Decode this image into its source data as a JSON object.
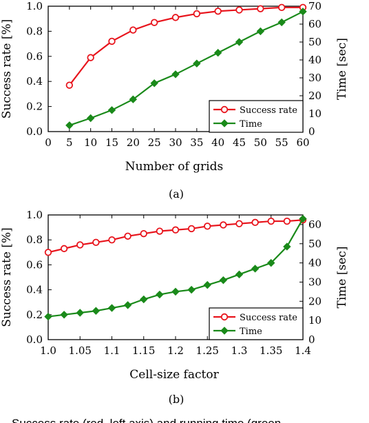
{
  "colors": {
    "success": "#e8141c",
    "time": "#1a8a1a",
    "axis": "#000000"
  },
  "figure_caption": "Success rate (red, left axis) and running time (green",
  "chart_data": [
    {
      "type": "line",
      "panel_label": "(a)",
      "xlabel": "Number of grids",
      "ylabel_left": "Success rate [%]",
      "ylabel_right": "Time [sec]",
      "xlim": [
        0,
        60
      ],
      "xticks": [
        0,
        5,
        10,
        15,
        20,
        25,
        30,
        35,
        40,
        45,
        50,
        55,
        60
      ],
      "xtick_labels": [
        "0",
        "5",
        "10",
        "15",
        "20",
        "25",
        "30",
        "35",
        "40",
        "45",
        "50",
        "55",
        "60"
      ],
      "ylim_left": [
        0,
        1.0
      ],
      "yticks_left": [
        0,
        0.2,
        0.4,
        0.6,
        0.8,
        1.0
      ],
      "ytick_labels_left": [
        "0.0",
        "0.2",
        "0.4",
        "0.6",
        "0.8",
        "1.0"
      ],
      "ylim_right": [
        0,
        70
      ],
      "yticks_right": [
        0,
        10,
        20,
        30,
        40,
        50,
        60,
        70
      ],
      "ytick_labels_right": [
        "0",
        "10",
        "20",
        "30",
        "40",
        "50",
        "60",
        "70"
      ],
      "x": [
        5,
        10,
        15,
        20,
        25,
        30,
        35,
        40,
        45,
        50,
        55,
        60
      ],
      "series": [
        {
          "name": "Success rate",
          "axis": "left",
          "marker": "circle",
          "values": [
            0.37,
            0.59,
            0.72,
            0.81,
            0.87,
            0.91,
            0.94,
            0.96,
            0.97,
            0.98,
            0.99,
            0.99
          ]
        },
        {
          "name": "Time",
          "axis": "right",
          "marker": "diamond",
          "values": [
            3.5,
            7.5,
            12,
            18,
            27,
            32,
            38,
            44,
            50,
            56,
            61,
            67
          ]
        }
      ],
      "legend_position": "bottom-right",
      "grid": false
    },
    {
      "type": "line",
      "panel_label": "(b)",
      "xlabel": "Cell-size factor",
      "ylabel_left": "Success rate [%]",
      "ylabel_right": "Time [sec]",
      "xlim": [
        1.0,
        1.4
      ],
      "xticks": [
        1.0,
        1.05,
        1.1,
        1.15,
        1.2,
        1.25,
        1.3,
        1.35,
        1.4
      ],
      "xtick_labels": [
        "1.0",
        "1.05",
        "1.1",
        "1.15",
        "1.2",
        "1.25",
        "1.3",
        "1.35",
        "1.4"
      ],
      "ylim_left": [
        0,
        1.0
      ],
      "yticks_left": [
        0,
        0.2,
        0.4,
        0.6,
        0.8,
        1.0
      ],
      "ytick_labels_left": [
        "0.0",
        "0.2",
        "0.4",
        "0.6",
        "0.8",
        "1.0"
      ],
      "ylim_right": [
        0,
        65
      ],
      "yticks_right": [
        0,
        10,
        20,
        30,
        40,
        50,
        60
      ],
      "ytick_labels_right": [
        "0",
        "10",
        "20",
        "30",
        "40",
        "50",
        "60"
      ],
      "x": [
        1.0,
        1.025,
        1.05,
        1.075,
        1.1,
        1.125,
        1.15,
        1.175,
        1.2,
        1.225,
        1.25,
        1.275,
        1.3,
        1.325,
        1.35,
        1.375,
        1.4
      ],
      "series": [
        {
          "name": "Success rate",
          "axis": "left",
          "marker": "circle",
          "values": [
            0.7,
            0.73,
            0.76,
            0.78,
            0.8,
            0.83,
            0.85,
            0.87,
            0.88,
            0.89,
            0.91,
            0.92,
            0.93,
            0.94,
            0.95,
            0.95,
            0.96
          ]
        },
        {
          "name": "Time",
          "axis": "right",
          "marker": "diamond",
          "values": [
            12,
            13,
            14,
            15,
            16.5,
            18,
            21,
            23.5,
            25,
            26,
            28.5,
            31,
            34,
            37,
            40,
            48.5,
            63
          ]
        }
      ],
      "legend_position": "bottom-right",
      "grid": false
    }
  ]
}
